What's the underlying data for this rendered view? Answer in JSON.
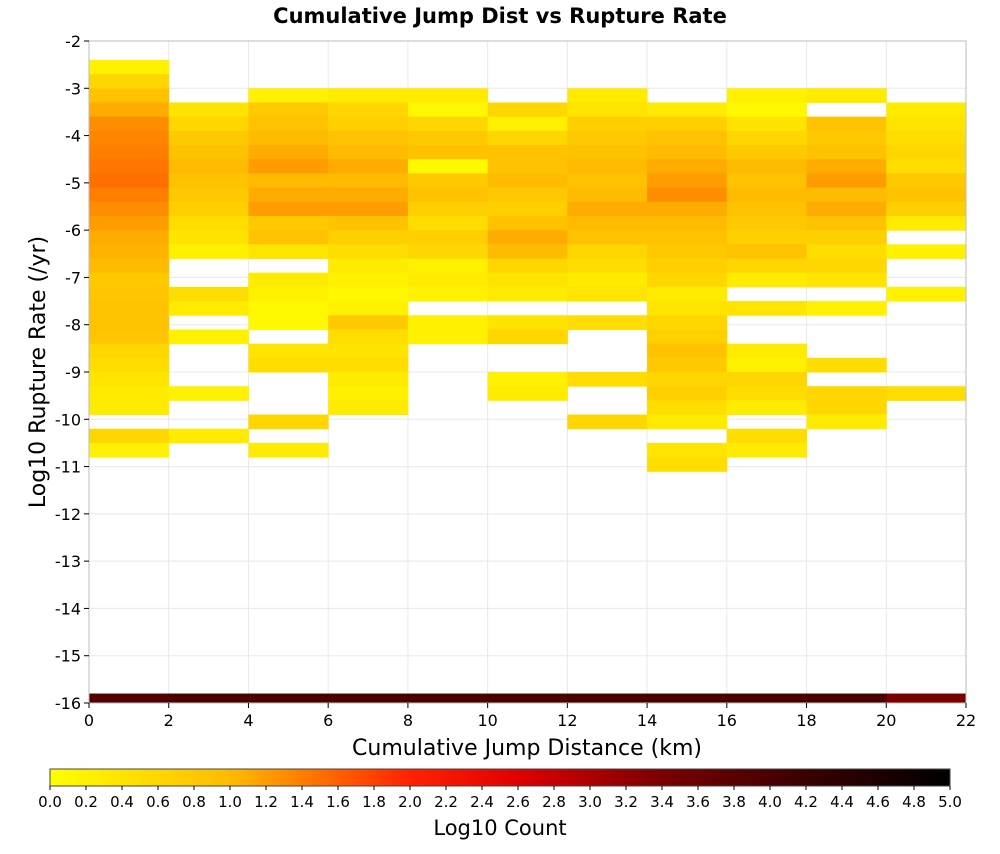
{
  "chart_data": {
    "type": "heatmap",
    "title": "Cumulative Jump Dist vs Rupture Rate",
    "xlabel": "Cumulative Jump Distance (km)",
    "ylabel": "Log10 Rupture Rate (/yr)",
    "xlim": [
      0,
      22
    ],
    "ylim": [
      -16,
      -2
    ],
    "x_ticks": [
      0,
      2,
      4,
      6,
      8,
      10,
      12,
      14,
      16,
      18,
      20,
      22
    ],
    "y_ticks": [
      -16,
      -15,
      -14,
      -13,
      -12,
      -11,
      -10,
      -9,
      -8,
      -7,
      -6,
      -5,
      -4,
      -3,
      -2
    ],
    "bin_width_x": 2,
    "bin_height_y": 0.3,
    "grid": true,
    "colorbar": {
      "label": "Log10 Count",
      "range": [
        0,
        5
      ],
      "ticks": [
        "0.0",
        "0.2",
        "0.4",
        "0.6",
        "0.8",
        "1.0",
        "1.2",
        "1.4",
        "1.6",
        "1.8",
        "2.0",
        "2.2",
        "2.4",
        "2.6",
        "2.8",
        "3.0",
        "3.2",
        "3.4",
        "3.6",
        "3.8",
        "4.0",
        "4.2",
        "4.4",
        "4.6",
        "4.8",
        "5.0"
      ],
      "stops": [
        {
          "v": 0.0,
          "color": "#ffff00"
        },
        {
          "v": 1.0,
          "color": "#ffbb00"
        },
        {
          "v": 2.0,
          "color": "#ff2200"
        },
        {
          "v": 2.6,
          "color": "#e00000"
        },
        {
          "v": 3.4,
          "color": "#7a0000"
        },
        {
          "v": 4.2,
          "color": "#3a0000"
        },
        {
          "v": 5.0,
          "color": "#000000"
        }
      ]
    },
    "columns": [
      {
        "x0": 0,
        "cells": [
          [
            -2.7,
            0.2
          ],
          [
            -3.0,
            0.6
          ],
          [
            -3.3,
            0.9
          ],
          [
            -3.6,
            1.1
          ],
          [
            -3.9,
            1.3
          ],
          [
            -4.2,
            1.35
          ],
          [
            -4.5,
            1.4
          ],
          [
            -4.8,
            1.45
          ],
          [
            -5.1,
            1.5
          ],
          [
            -5.4,
            1.4
          ],
          [
            -5.7,
            1.3
          ],
          [
            -6.0,
            1.2
          ],
          [
            -6.3,
            1.1
          ],
          [
            -6.6,
            1.05
          ],
          [
            -6.9,
            1.0
          ],
          [
            -7.2,
            0.8
          ],
          [
            -7.5,
            0.85
          ],
          [
            -7.8,
            0.9
          ],
          [
            -8.1,
            0.9
          ],
          [
            -8.4,
            0.85
          ],
          [
            -8.7,
            0.6
          ],
          [
            -9.0,
            0.5
          ],
          [
            -9.3,
            0.4
          ],
          [
            -9.6,
            0.3
          ],
          [
            -9.9,
            0.3
          ],
          [
            -10.5,
            0.6
          ],
          [
            -10.8,
            0.2
          ]
        ]
      },
      {
        "x0": 2,
        "cells": [
          [
            -3.6,
            0.4
          ],
          [
            -3.9,
            0.6
          ],
          [
            -4.2,
            0.8
          ],
          [
            -4.5,
            0.9
          ],
          [
            -4.8,
            1.0
          ],
          [
            -5.1,
            0.9
          ],
          [
            -5.4,
            0.8
          ],
          [
            -5.7,
            0.7
          ],
          [
            -6.0,
            0.5
          ],
          [
            -6.3,
            0.4
          ],
          [
            -6.6,
            0.2
          ],
          [
            -7.5,
            0.5
          ],
          [
            -7.8,
            0.3
          ],
          [
            -8.4,
            0.2
          ],
          [
            -9.6,
            0.2
          ],
          [
            -10.5,
            0.3
          ]
        ]
      },
      {
        "x0": 4,
        "cells": [
          [
            -3.3,
            0.2
          ],
          [
            -3.6,
            0.8
          ],
          [
            -3.9,
            0.9
          ],
          [
            -4.2,
            1.0
          ],
          [
            -4.5,
            1.1
          ],
          [
            -4.8,
            1.2
          ],
          [
            -5.1,
            1.0
          ],
          [
            -5.4,
            1.1
          ],
          [
            -5.7,
            1.2
          ],
          [
            -6.0,
            0.8
          ],
          [
            -6.3,
            0.9
          ],
          [
            -6.6,
            0.4
          ],
          [
            -7.2,
            0.3
          ],
          [
            -7.5,
            0.2
          ],
          [
            -7.8,
            0.1
          ],
          [
            -8.1,
            0.1
          ],
          [
            -8.7,
            0.4
          ],
          [
            -9.0,
            0.5
          ],
          [
            -10.2,
            0.6
          ],
          [
            -10.8,
            0.3
          ]
        ]
      },
      {
        "x0": 6,
        "cells": [
          [
            -3.3,
            0.3
          ],
          [
            -3.6,
            0.6
          ],
          [
            -3.9,
            0.7
          ],
          [
            -4.2,
            0.9
          ],
          [
            -4.5,
            1.0
          ],
          [
            -4.8,
            1.1
          ],
          [
            -5.1,
            1.0
          ],
          [
            -5.4,
            1.1
          ],
          [
            -5.7,
            1.2
          ],
          [
            -6.0,
            0.9
          ],
          [
            -6.3,
            0.7
          ],
          [
            -6.6,
            0.5
          ],
          [
            -6.9,
            0.3
          ],
          [
            -7.2,
            0.2
          ],
          [
            -7.5,
            0.1
          ],
          [
            -7.8,
            0.2
          ],
          [
            -8.1,
            0.8
          ],
          [
            -8.4,
            0.5
          ],
          [
            -8.7,
            0.4
          ],
          [
            -9.0,
            0.5
          ],
          [
            -9.3,
            0.3
          ],
          [
            -9.6,
            0.2
          ],
          [
            -9.9,
            0.3
          ]
        ]
      },
      {
        "x0": 8,
        "cells": [
          [
            -3.3,
            0.3
          ],
          [
            -3.6,
            0.1
          ],
          [
            -3.9,
            0.6
          ],
          [
            -4.2,
            0.8
          ],
          [
            -4.5,
            0.9
          ],
          [
            -4.8,
            0.1
          ],
          [
            -5.1,
            0.8
          ],
          [
            -5.4,
            0.9
          ],
          [
            -5.7,
            0.7
          ],
          [
            -6.0,
            0.5
          ],
          [
            -6.3,
            0.7
          ],
          [
            -6.6,
            0.6
          ],
          [
            -6.9,
            0.2
          ],
          [
            -7.2,
            0.3
          ],
          [
            -7.5,
            0.2
          ],
          [
            -8.1,
            0.2
          ],
          [
            -8.4,
            0.2
          ]
        ]
      },
      {
        "x0": 10,
        "cells": [
          [
            -3.6,
            0.6
          ],
          [
            -3.9,
            0.2
          ],
          [
            -4.2,
            0.6
          ],
          [
            -4.5,
            0.9
          ],
          [
            -4.8,
            0.9
          ],
          [
            -5.1,
            1.0
          ],
          [
            -5.4,
            0.8
          ],
          [
            -5.7,
            0.7
          ],
          [
            -6.0,
            0.9
          ],
          [
            -6.3,
            1.1
          ],
          [
            -6.6,
            1.0
          ],
          [
            -6.9,
            0.6
          ],
          [
            -7.2,
            0.4
          ],
          [
            -7.5,
            0.3
          ],
          [
            -8.1,
            0.4
          ],
          [
            -8.4,
            0.6
          ],
          [
            -9.3,
            0.2
          ],
          [
            -9.6,
            0.3
          ]
        ]
      },
      {
        "x0": 12,
        "cells": [
          [
            -3.3,
            0.3
          ],
          [
            -3.6,
            0.4
          ],
          [
            -3.9,
            0.7
          ],
          [
            -4.2,
            0.8
          ],
          [
            -4.5,
            0.9
          ],
          [
            -4.8,
            1.0
          ],
          [
            -5.1,
            0.9
          ],
          [
            -5.4,
            1.0
          ],
          [
            -5.7,
            1.1
          ],
          [
            -6.0,
            1.0
          ],
          [
            -6.3,
            0.9
          ],
          [
            -6.6,
            0.6
          ],
          [
            -6.9,
            0.5
          ],
          [
            -7.2,
            0.3
          ],
          [
            -7.5,
            0.4
          ],
          [
            -8.1,
            0.5
          ],
          [
            -9.3,
            0.5
          ],
          [
            -10.2,
            0.6
          ]
        ]
      },
      {
        "x0": 14,
        "cells": [
          [
            -3.6,
            0.3
          ],
          [
            -3.9,
            0.7
          ],
          [
            -4.2,
            0.9
          ],
          [
            -4.5,
            1.0
          ],
          [
            -4.8,
            1.1
          ],
          [
            -5.1,
            1.2
          ],
          [
            -5.4,
            1.3
          ],
          [
            -5.7,
            1.1
          ],
          [
            -6.0,
            1.0
          ],
          [
            -6.3,
            0.9
          ],
          [
            -6.6,
            0.8
          ],
          [
            -6.9,
            0.7
          ],
          [
            -7.2,
            0.6
          ],
          [
            -7.5,
            0.3
          ],
          [
            -7.8,
            0.4
          ],
          [
            -8.1,
            0.6
          ],
          [
            -8.4,
            0.7
          ],
          [
            -8.7,
            0.9
          ],
          [
            -9.0,
            0.8
          ],
          [
            -9.3,
            0.6
          ],
          [
            -9.6,
            0.7
          ],
          [
            -9.9,
            0.5
          ],
          [
            -10.2,
            0.3
          ],
          [
            -10.8,
            0.4
          ],
          [
            -11.1,
            0.5
          ]
        ]
      },
      {
        "x0": 16,
        "cells": [
          [
            -3.3,
            0.2
          ],
          [
            -3.6,
            0.1
          ],
          [
            -3.9,
            0.4
          ],
          [
            -4.2,
            0.6
          ],
          [
            -4.5,
            0.8
          ],
          [
            -4.8,
            1.0
          ],
          [
            -5.1,
            0.9
          ],
          [
            -5.4,
            1.0
          ],
          [
            -5.7,
            0.9
          ],
          [
            -6.0,
            0.8
          ],
          [
            -6.3,
            0.7
          ],
          [
            -6.6,
            0.9
          ],
          [
            -6.9,
            0.6
          ],
          [
            -7.2,
            0.3
          ],
          [
            -7.8,
            0.4
          ],
          [
            -8.7,
            0.3
          ],
          [
            -9.0,
            0.2
          ],
          [
            -9.3,
            0.6
          ],
          [
            -9.6,
            0.5
          ],
          [
            -9.9,
            0.3
          ],
          [
            -10.5,
            0.5
          ],
          [
            -10.8,
            0.3
          ]
        ]
      },
      {
        "x0": 18,
        "cells": [
          [
            -3.3,
            0.3
          ],
          [
            -3.9,
            0.9
          ],
          [
            -4.2,
            0.8
          ],
          [
            -4.5,
            0.9
          ],
          [
            -4.8,
            1.1
          ],
          [
            -5.1,
            1.2
          ],
          [
            -5.4,
            1.0
          ],
          [
            -5.7,
            1.1
          ],
          [
            -6.0,
            0.9
          ],
          [
            -6.3,
            0.7
          ],
          [
            -6.6,
            0.5
          ],
          [
            -6.9,
            0.6
          ],
          [
            -7.2,
            0.4
          ],
          [
            -7.8,
            0.2
          ],
          [
            -9.0,
            0.5
          ],
          [
            -9.6,
            0.6
          ],
          [
            -9.9,
            0.6
          ],
          [
            -10.2,
            0.3
          ]
        ]
      },
      {
        "x0": 20,
        "cells": [
          [
            -3.6,
            0.3
          ],
          [
            -3.9,
            0.4
          ],
          [
            -4.2,
            0.5
          ],
          [
            -4.5,
            0.6
          ],
          [
            -4.8,
            0.5
          ],
          [
            -5.1,
            0.8
          ],
          [
            -5.4,
            0.9
          ],
          [
            -5.7,
            0.7
          ],
          [
            -6.0,
            0.3
          ],
          [
            -6.6,
            0.2
          ],
          [
            -7.5,
            0.2
          ],
          [
            -9.6,
            0.5
          ]
        ]
      }
    ],
    "bottom_row": {
      "y": -16.0,
      "height": 0.2,
      "values": [
        3.9,
        4.0,
        4.0,
        4.0,
        4.0,
        4.0,
        4.0,
        4.0,
        4.0,
        4.0,
        3.4
      ]
    }
  }
}
